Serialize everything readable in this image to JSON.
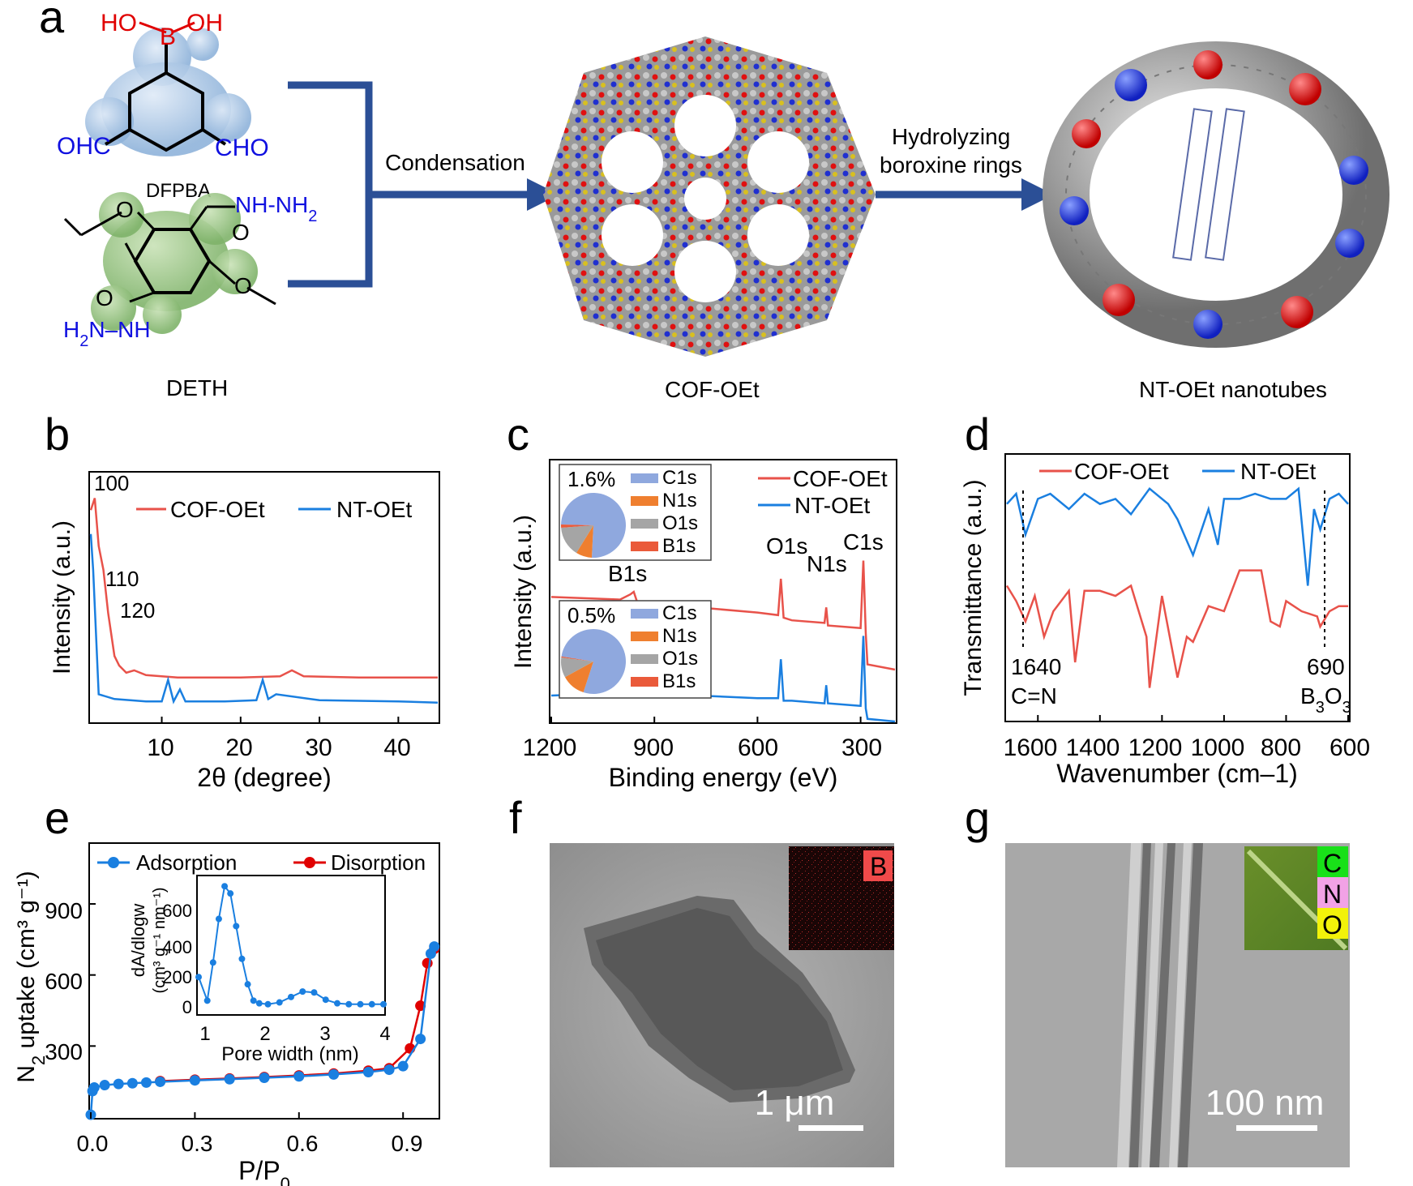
{
  "panels": {
    "a": {
      "label": "a",
      "molecule1": {
        "name": "DFPBA",
        "ho_left": "HO",
        "b": "B",
        "oh_right": "OH",
        "cho_left": "OHC",
        "cho_right": "CHO"
      },
      "molecule2": {
        "name": "DETH",
        "nh_top": "NH-NH",
        "sub2": "2",
        "h2n": "H",
        "h2n_sub": "2",
        "h2n_rest": "N–NH",
        "o1": "O",
        "o2": "O",
        "o3": "O",
        "o4": "O"
      },
      "step1": "Condensation",
      "step2_line1": "Hydrolyzing",
      "step2_line2": "boroxine rings",
      "cof_name": "COF-OEt",
      "nt_name": "NT-OEt nanotubes"
    },
    "b": {
      "label": "b",
      "ylabel": "Intensity (a.u.)",
      "xlabel": "2θ (degree)",
      "xticks": [
        "10",
        "20",
        "30",
        "40"
      ],
      "legend": [
        "COF-OEt",
        "NT-OEt"
      ],
      "peaks": [
        "100",
        "110",
        "120"
      ]
    },
    "c": {
      "label": "c",
      "ylabel": "Intensity (a.u.)",
      "xlabel": "Binding energy (eV)",
      "xticks": [
        "1200",
        "900",
        "600",
        "300"
      ],
      "legend": [
        "COF-OEt",
        "NT-OEt"
      ],
      "peaks": [
        "B1s",
        "O1s",
        "N1s",
        "C1s"
      ],
      "pie1_pct": "1.6%",
      "pie2_pct": "0.5%",
      "pie_legend": [
        "C1s",
        "N1s",
        "O1s",
        "B1s"
      ]
    },
    "d": {
      "label": "d",
      "ylabel": "Transmittance (a.u.)",
      "xlabel": "Wavenumber (cm–1)",
      "xticks": [
        "1600",
        "1400",
        "1200",
        "1000",
        "800",
        "600"
      ],
      "legend": [
        "COF-OEt",
        "NT-OEt"
      ],
      "ann1_num": "1640",
      "ann1_text": "C=N",
      "ann2_num": "690",
      "ann2_b": "B",
      "ann2_sub1": "3",
      "ann2_o": "O",
      "ann2_sub2": "3"
    },
    "e": {
      "label": "e",
      "ylabel_a": "N",
      "ylabel_sub": "2",
      "ylabel_b": " uptake (cm³ g⁻¹)",
      "xlabel_a": "P/P",
      "xlabel_sub": "0",
      "xticks": [
        "0.0",
        "0.3",
        "0.6",
        "0.9"
      ],
      "yticks": [
        "300",
        "600",
        "900"
      ],
      "legend": [
        "Adsorption",
        "Disorption"
      ],
      "inset_ylabel1": "dA/dlogw",
      "inset_ylabel2": "(cm³ g⁻¹ nm⁻¹)",
      "inset_xlabel": "Pore width (nm)",
      "inset_xticks": [
        "1",
        "2",
        "3",
        "4"
      ],
      "inset_yticks": [
        "0",
        "200",
        "400",
        "600"
      ]
    },
    "f": {
      "label": "f",
      "scale": "1 μm",
      "element": "B"
    },
    "g": {
      "label": "g",
      "scale": "100 nm",
      "elements": [
        "C",
        "N",
        "O"
      ]
    }
  },
  "colors": {
    "red": "#e8524a",
    "blue": "#1a7fe0",
    "navy": "#2b4f96",
    "pieBlue": "#8fa8de",
    "pieOrange": "#ef7f2f",
    "pieGray": "#a5a5a5"
  },
  "chart_data": [
    {
      "type": "line",
      "panel": "b",
      "title": "",
      "xlabel": "2θ (degree)",
      "ylabel": "Intensity (a.u.)",
      "xlim": [
        1,
        45
      ],
      "series": [
        {
          "name": "COF-OEt",
          "x": [
            1,
            1.5,
            2,
            2.6,
            3.2,
            4,
            4.6,
            5.5,
            6.5,
            8,
            12,
            20,
            25,
            26.5,
            28,
            35,
            45
          ],
          "values": [
            85,
            90,
            70,
            60,
            42,
            24,
            20,
            17,
            18,
            16,
            15,
            15,
            15.5,
            18,
            15.5,
            15,
            15
          ]
        },
        {
          "name": "NT-OEt",
          "x": [
            1,
            1.3,
            2,
            4,
            8,
            10,
            10.8,
            11.5,
            12.3,
            13,
            18,
            22,
            22.8,
            23.5,
            24.5,
            30,
            40,
            45
          ],
          "values": [
            75,
            60,
            8,
            6,
            5,
            5,
            14,
            5,
            10,
            5,
            5,
            5.5,
            14,
            6,
            8,
            5.5,
            5,
            4.5
          ]
        }
      ]
    },
    {
      "type": "line",
      "panel": "c",
      "title": "",
      "xlabel": "Binding energy (eV)",
      "ylabel": "Intensity (a.u.)",
      "xlim": [
        1200,
        200
      ],
      "series": [
        {
          "name": "COF-OEt",
          "x": [
            1200,
            1000,
            970,
            960,
            950,
            600,
            540,
            532,
            524,
            500,
            405,
            400,
            395,
            300,
            292,
            285,
            280,
            200
          ],
          "values": [
            48,
            47,
            49,
            50,
            46,
            42,
            41,
            55,
            40,
            39,
            38,
            44,
            37,
            36,
            62,
            34,
            22,
            20
          ]
        },
        {
          "name": "NT-OEt",
          "x": [
            1200,
            1000,
            970,
            960,
            950,
            600,
            540,
            532,
            524,
            500,
            405,
            400,
            395,
            300,
            292,
            285,
            280,
            200
          ],
          "values": [
            10,
            11,
            12,
            13,
            11,
            9,
            9,
            24,
            8,
            8,
            7,
            14,
            7,
            6,
            33,
            5,
            1,
            0
          ]
        }
      ]
    },
    {
      "type": "pie",
      "panel": "c-inset-1",
      "labels": [
        "C1s",
        "N1s",
        "O1s",
        "B1s"
      ],
      "values": [
        75.4,
        8.0,
        15.0,
        1.6
      ]
    },
    {
      "type": "pie",
      "panel": "c-inset-2",
      "labels": [
        "C1s",
        "N1s",
        "O1s",
        "B1s"
      ],
      "values": [
        77.5,
        12.0,
        10.0,
        0.5
      ]
    },
    {
      "type": "line",
      "panel": "d",
      "title": "",
      "xlabel": "Wavenumber (cm–1)",
      "ylabel": "Transmittance (a.u.)",
      "xlim": [
        1700,
        600
      ],
      "series": [
        {
          "name": "NT-OEt",
          "x": [
            1700,
            1670,
            1640,
            1600,
            1560,
            1500,
            1450,
            1400,
            1350,
            1300,
            1240,
            1180,
            1150,
            1100,
            1050,
            1020,
            1000,
            950,
            900,
            850,
            800,
            760,
            730,
            710,
            690,
            660,
            630,
            600
          ],
          "values": [
            82,
            86,
            70,
            84,
            86,
            80,
            86,
            82,
            84,
            78,
            88,
            82,
            76,
            62,
            80,
            66,
            84,
            84,
            86,
            84,
            84,
            88,
            50,
            80,
            72,
            84,
            86,
            82
          ]
        },
        {
          "name": "COF-OEt",
          "x": [
            1700,
            1670,
            1640,
            1610,
            1580,
            1550,
            1500,
            1480,
            1450,
            1400,
            1350,
            1300,
            1250,
            1240,
            1200,
            1150,
            1120,
            1100,
            1050,
            1000,
            950,
            900,
            880,
            850,
            820,
            800,
            750,
            700,
            690,
            660,
            630,
            600
          ],
          "values": [
            50,
            44,
            36,
            46,
            30,
            40,
            48,
            20,
            48,
            48,
            46,
            50,
            30,
            10,
            46,
            14,
            30,
            28,
            42,
            40,
            56,
            56,
            56,
            36,
            34,
            44,
            40,
            38,
            34,
            40,
            42,
            42
          ]
        }
      ]
    },
    {
      "type": "scatter",
      "panel": "e",
      "title": "",
      "xlabel": "P/P0",
      "ylabel": "N2 uptake (cm3 g-1)",
      "xlim": [
        0,
        1
      ],
      "ylim": [
        0,
        1150
      ],
      "series": [
        {
          "name": "Adsorption",
          "x": [
            0.0,
            0.005,
            0.01,
            0.04,
            0.08,
            0.12,
            0.16,
            0.2,
            0.3,
            0.4,
            0.5,
            0.6,
            0.7,
            0.8,
            0.86,
            0.9,
            0.95,
            0.98,
            0.99
          ],
          "values": [
            10,
            110,
            125,
            135,
            140,
            143,
            146,
            149,
            155,
            160,
            166,
            172,
            180,
            190,
            200,
            215,
            330,
            690,
            720
          ]
        },
        {
          "name": "Disorption",
          "x": [
            0.2,
            0.3,
            0.4,
            0.5,
            0.6,
            0.7,
            0.8,
            0.86,
            0.92,
            0.95,
            0.97,
            0.99
          ],
          "values": [
            152,
            158,
            163,
            169,
            176,
            184,
            196,
            206,
            290,
            470,
            650,
            710
          ]
        }
      ]
    },
    {
      "type": "line",
      "panel": "e-inset",
      "title": "",
      "xlabel": "Pore width (nm)",
      "ylabel": "dA/dlogw (cm3 g-1 nm-1)",
      "xlim": [
        0.8,
        4
      ],
      "ylim": [
        -50,
        700
      ],
      "x": [
        0.8,
        0.95,
        1.05,
        1.15,
        1.25,
        1.35,
        1.45,
        1.55,
        1.65,
        1.75,
        1.85,
        2.0,
        2.2,
        2.4,
        2.6,
        2.8,
        3.0,
        3.2,
        3.4,
        3.6,
        3.8,
        4.0
      ],
      "series": [
        {
          "name": "pore distribution",
          "values": [
            150,
            20,
            230,
            470,
            650,
            610,
            430,
            250,
            110,
            20,
            5,
            0,
            10,
            40,
            70,
            65,
            25,
            5,
            0,
            0,
            0,
            0
          ]
        }
      ]
    }
  ]
}
